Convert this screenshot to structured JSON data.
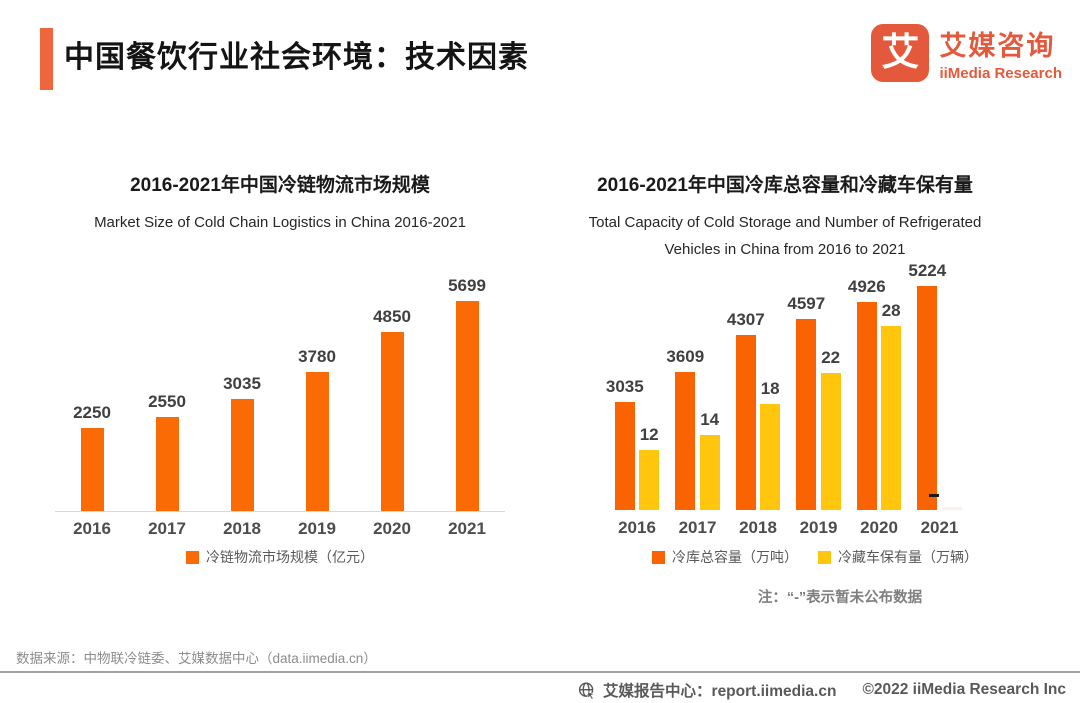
{
  "header": {
    "title": "中国餐饮行业社会环境：技术因素",
    "logo": {
      "glyph": "艾",
      "name_cn": "艾媒咨询",
      "name_en": "iiMedia Research",
      "color": "#E4593B"
    }
  },
  "colors": {
    "accent": "#F0663C",
    "orange_left": "#FB6B05",
    "orange_right": "#F96301",
    "yellow": "#FFC60D",
    "divider": "#A1A1A1"
  },
  "chart_data": [
    {
      "type": "bar",
      "title": "2016-2021年中国冷链物流市场规模",
      "subtitle": "Market Size of Cold Chain Logistics in China 2016-2021",
      "categories": [
        "2016",
        "2017",
        "2018",
        "2019",
        "2020",
        "2021"
      ],
      "series": [
        {
          "name": "冷链物流市场规模（亿元）",
          "color": "#FB6B05",
          "values": [
            2250,
            2550,
            3035,
            3780,
            4850,
            5699
          ]
        }
      ],
      "value_labels": true,
      "grid": false,
      "legend_position": "bottom",
      "ylim": [
        0,
        6200
      ]
    },
    {
      "type": "bar",
      "title": "2016-2021年中国冷库总容量和冷藏车保有量",
      "subtitle": "Total Capacity of Cold Storage and Number of Refrigerated Vehicles in China from 2016 to 2021",
      "categories": [
        "2016",
        "2017",
        "2018",
        "2019",
        "2020",
        "2021"
      ],
      "series": [
        {
          "name": "冷库总容量（万吨）",
          "color": "#F96301",
          "values": [
            3035,
            3609,
            4307,
            4597,
            4926,
            5224
          ]
        },
        {
          "name": "冷藏车保有量（万辆）",
          "color": "#FFC60D",
          "values": [
            12,
            14,
            18,
            22,
            28,
            null
          ],
          "missing_marker": "-"
        }
      ],
      "value_labels": true,
      "grid": false,
      "legend_position": "bottom",
      "note": "注：“-”表示暂未公布数据"
    }
  ],
  "footer": {
    "source": "数据来源：中物联冷链委、艾媒数据中心（data.iimedia.cn）",
    "report_center": "艾媒报告中心：report.iimedia.cn",
    "copyright": "©2022  iiMedia Research Inc"
  }
}
